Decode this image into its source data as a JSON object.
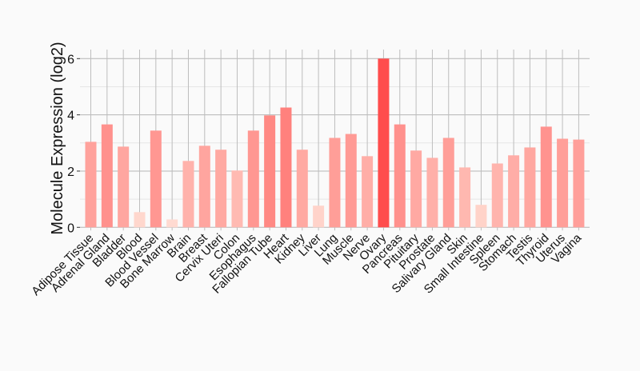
{
  "chart_data": {
    "type": "bar",
    "title": "",
    "xlabel": "",
    "ylabel": "Molecule Expression (log2)",
    "ylim": [
      0,
      6.3
    ],
    "yticks": [
      0,
      2,
      4,
      6
    ],
    "grid": true,
    "categories": [
      "Adipose Tissue",
      "Adrenal Gland",
      "Bladder",
      "Blood",
      "Blood Vessel",
      "Bone Marrow",
      "Brain",
      "Breast",
      "Cervix Uteri",
      "Colon",
      "Esophagus",
      "Fallopian Tube",
      "Heart",
      "Kidney",
      "Liver",
      "Lung",
      "Muscle",
      "Nerve",
      "Ovary",
      "Pancreas",
      "Pituitary",
      "Prostate",
      "Salivary Gland",
      "Skin",
      "Small Intestine",
      "Spleen",
      "Stomach",
      "Testis",
      "Thyroid",
      "Uterus",
      "Vagina"
    ],
    "values": [
      3.04,
      3.66,
      2.87,
      0.54,
      3.44,
      0.28,
      2.36,
      2.9,
      2.76,
      2.02,
      3.44,
      3.98,
      4.26,
      2.76,
      0.77,
      3.18,
      3.32,
      2.53,
      6.0,
      3.66,
      2.73,
      2.47,
      3.18,
      2.13,
      0.8,
      2.27,
      2.56,
      2.84,
      3.58,
      3.15,
      3.12
    ],
    "colors": {
      "low": "#ffddd3",
      "high": "#ff4d4d"
    }
  }
}
